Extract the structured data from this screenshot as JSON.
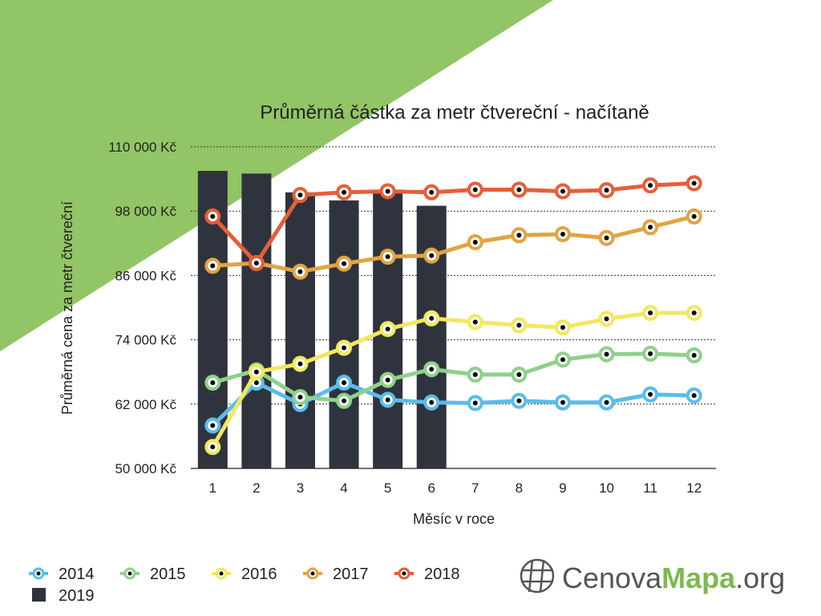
{
  "colors": {
    "background_triangle": "#92c565",
    "bar": "#2f333d",
    "grid": "#333333",
    "axis": "#222222",
    "marker_center": "#000000",
    "logo_gray": "#555555",
    "logo_green": "#7fb950"
  },
  "logo": {
    "part1": "Cenova",
    "part2": "Mapa",
    "part3": ".org",
    "icon": "globe-grid-icon"
  },
  "chart_data": {
    "type": "line",
    "title": "Průměrná částka za metr čtvereční - načítaně",
    "xlabel": "Měsíc v roce",
    "ylabel": "Průměrná cena za metr čtvereční",
    "ylim": [
      50000,
      110000
    ],
    "yticks": [
      50000,
      62000,
      74000,
      86000,
      98000,
      110000
    ],
    "ytick_labels": [
      "50 000 Kč",
      "62 000 Kč",
      "74 000 Kč",
      "86 000 Kč",
      "98 000 Kč",
      "110 000 Kč"
    ],
    "categories": [
      "1",
      "2",
      "3",
      "4",
      "5",
      "6",
      "7",
      "8",
      "9",
      "10",
      "11",
      "12"
    ],
    "grid": true,
    "legend_position": "bottom-left",
    "bars": {
      "name": "2019",
      "color": "#2f333d",
      "values": [
        105500,
        105000,
        101500,
        100000,
        102000,
        99000
      ]
    },
    "series": [
      {
        "name": "2014",
        "color": "#5bbcea",
        "values": [
          58000,
          66000,
          62000,
          66000,
          62800,
          62300,
          62200,
          62600,
          62300,
          62300,
          63800,
          63600
        ]
      },
      {
        "name": "2015",
        "color": "#8fd18b",
        "values": [
          66000,
          68300,
          63300,
          62600,
          66500,
          68500,
          67500,
          67500,
          70300,
          71300,
          71400,
          71100
        ]
      },
      {
        "name": "2016",
        "color": "#f2e85e",
        "values": [
          54000,
          68000,
          69500,
          72500,
          76000,
          78000,
          77300,
          76700,
          76300,
          77900,
          79000,
          79000
        ]
      },
      {
        "name": "2017",
        "color": "#e1a443",
        "values": [
          87800,
          88300,
          86700,
          88200,
          89500,
          89700,
          92200,
          93500,
          93700,
          93000,
          95000,
          97000
        ]
      },
      {
        "name": "2018",
        "color": "#e45f3a",
        "values": [
          97000,
          88300,
          101000,
          101500,
          101700,
          101500,
          102000,
          102000,
          101700,
          101900,
          102800,
          103200
        ]
      }
    ]
  }
}
